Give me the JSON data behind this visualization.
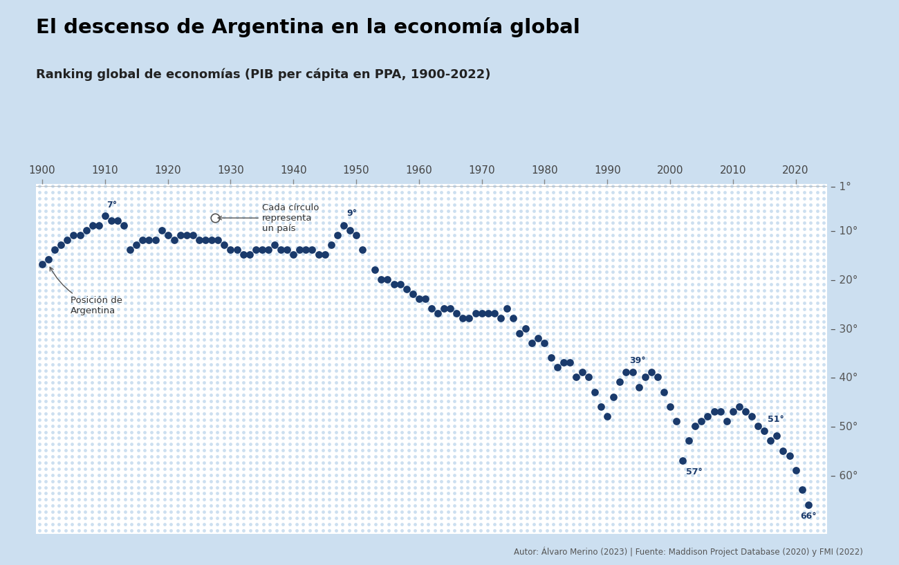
{
  "title": "El descenso de Argentina en la economía global",
  "subtitle": "Ranking global de economías (PIB per cápita en PPA, 1900-2022)",
  "source": "Autor: Álvaro Merino (2023) | Fuente: Maddison Project Database (2020) y FMI (2022)",
  "bg_color": "#ccdff0",
  "plot_bg_color": "#ffffff",
  "dot_color": "#ccdff0",
  "point_color": "#1a3a6b",
  "xmin": 1899,
  "xmax": 2025,
  "ymin": 1,
  "ymax": 70,
  "yticks": [
    1,
    10,
    20,
    30,
    40,
    50,
    60
  ],
  "ytick_labels": [
    "– 1°",
    "– 10°",
    "– 20°",
    "– 30°",
    "– 40°",
    "– 50°",
    "– 60°"
  ],
  "xticks": [
    1900,
    1910,
    1920,
    1930,
    1940,
    1950,
    1960,
    1970,
    1980,
    1990,
    2000,
    2010,
    2020
  ],
  "data": [
    [
      1900,
      17
    ],
    [
      1901,
      16
    ],
    [
      1902,
      14
    ],
    [
      1903,
      13
    ],
    [
      1904,
      12
    ],
    [
      1905,
      11
    ],
    [
      1906,
      11
    ],
    [
      1907,
      10
    ],
    [
      1908,
      9
    ],
    [
      1909,
      9
    ],
    [
      1910,
      7
    ],
    [
      1911,
      8
    ],
    [
      1912,
      8
    ],
    [
      1913,
      9
    ],
    [
      1914,
      14
    ],
    [
      1915,
      13
    ],
    [
      1916,
      12
    ],
    [
      1917,
      12
    ],
    [
      1918,
      12
    ],
    [
      1919,
      10
    ],
    [
      1920,
      11
    ],
    [
      1921,
      12
    ],
    [
      1922,
      11
    ],
    [
      1923,
      11
    ],
    [
      1924,
      11
    ],
    [
      1925,
      12
    ],
    [
      1926,
      12
    ],
    [
      1927,
      12
    ],
    [
      1928,
      12
    ],
    [
      1929,
      13
    ],
    [
      1930,
      14
    ],
    [
      1931,
      14
    ],
    [
      1932,
      15
    ],
    [
      1933,
      15
    ],
    [
      1934,
      14
    ],
    [
      1935,
      14
    ],
    [
      1936,
      14
    ],
    [
      1937,
      13
    ],
    [
      1938,
      14
    ],
    [
      1939,
      14
    ],
    [
      1940,
      15
    ],
    [
      1941,
      14
    ],
    [
      1942,
      14
    ],
    [
      1943,
      14
    ],
    [
      1944,
      15
    ],
    [
      1945,
      15
    ],
    [
      1946,
      13
    ],
    [
      1947,
      11
    ],
    [
      1948,
      9
    ],
    [
      1949,
      10
    ],
    [
      1950,
      11
    ],
    [
      1951,
      14
    ],
    [
      1953,
      18
    ],
    [
      1954,
      20
    ],
    [
      1955,
      20
    ],
    [
      1956,
      21
    ],
    [
      1957,
      21
    ],
    [
      1958,
      22
    ],
    [
      1959,
      23
    ],
    [
      1960,
      24
    ],
    [
      1961,
      24
    ],
    [
      1962,
      26
    ],
    [
      1963,
      27
    ],
    [
      1964,
      26
    ],
    [
      1965,
      26
    ],
    [
      1966,
      27
    ],
    [
      1967,
      28
    ],
    [
      1968,
      28
    ],
    [
      1969,
      27
    ],
    [
      1970,
      27
    ],
    [
      1971,
      27
    ],
    [
      1972,
      27
    ],
    [
      1973,
      28
    ],
    [
      1974,
      26
    ],
    [
      1975,
      28
    ],
    [
      1976,
      31
    ],
    [
      1977,
      30
    ],
    [
      1978,
      33
    ],
    [
      1979,
      32
    ],
    [
      1980,
      33
    ],
    [
      1981,
      36
    ],
    [
      1982,
      38
    ],
    [
      1983,
      37
    ],
    [
      1984,
      37
    ],
    [
      1985,
      40
    ],
    [
      1986,
      39
    ],
    [
      1987,
      40
    ],
    [
      1988,
      43
    ],
    [
      1989,
      46
    ],
    [
      1990,
      48
    ],
    [
      1991,
      44
    ],
    [
      1992,
      41
    ],
    [
      1993,
      39
    ],
    [
      1994,
      39
    ],
    [
      1995,
      42
    ],
    [
      1996,
      40
    ],
    [
      1997,
      39
    ],
    [
      1998,
      40
    ],
    [
      1999,
      43
    ],
    [
      2000,
      46
    ],
    [
      2001,
      49
    ],
    [
      2002,
      57
    ],
    [
      2003,
      53
    ],
    [
      2004,
      50
    ],
    [
      2005,
      49
    ],
    [
      2006,
      48
    ],
    [
      2007,
      47
    ],
    [
      2008,
      47
    ],
    [
      2009,
      49
    ],
    [
      2010,
      47
    ],
    [
      2011,
      46
    ],
    [
      2012,
      47
    ],
    [
      2013,
      48
    ],
    [
      2014,
      50
    ],
    [
      2015,
      51
    ],
    [
      2016,
      53
    ],
    [
      2017,
      52
    ],
    [
      2018,
      55
    ],
    [
      2019,
      56
    ],
    [
      2020,
      59
    ],
    [
      2021,
      63
    ],
    [
      2022,
      66
    ]
  ],
  "label_7": {
    "year": 1910,
    "rank": 7,
    "text": "7°",
    "ha": "left",
    "va": "bottom",
    "offx": 0.3,
    "offy": -1.2
  },
  "label_9": {
    "year": 1948,
    "rank": 9,
    "text": "9°",
    "ha": "left",
    "va": "bottom",
    "offx": 0.5,
    "offy": -1.5
  },
  "label_39": {
    "year": 1993,
    "rank": 39,
    "text": "39°",
    "ha": "left",
    "va": "bottom",
    "offx": 0.5,
    "offy": -1.5
  },
  "label_51": {
    "year": 2015,
    "rank": 51,
    "text": "51°",
    "ha": "left",
    "va": "bottom",
    "offx": 0.5,
    "offy": -1.5
  },
  "label_57": {
    "year": 2002,
    "rank": 57,
    "text": "57°",
    "ha": "left",
    "va": "top",
    "offx": 0.5,
    "offy": 1.5
  },
  "label_66": {
    "year": 2022,
    "rank": 66,
    "text": "66°",
    "ha": "center",
    "va": "top",
    "offx": 0,
    "offy": 1.5
  }
}
